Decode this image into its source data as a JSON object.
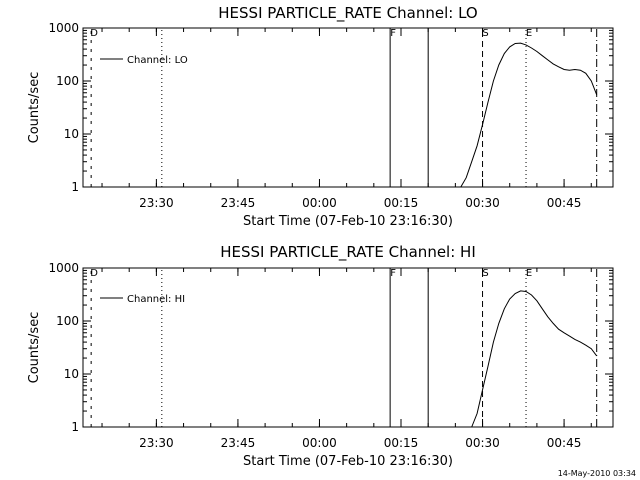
{
  "footer": {
    "date_stamp": "14-May-2010 03:34"
  },
  "chart_data": [
    {
      "type": "line",
      "title": "HESSI PARTICLE_RATE Channel: LO",
      "xlabel": "Start Time (07-Feb-10 23:16:30)",
      "ylabel": "Counts/sec",
      "y_scale": "log",
      "ylim": [
        1,
        1000
      ],
      "xlim": [
        "23:16:30",
        "00:54:00"
      ],
      "x_ticks": [
        "23:30",
        "23:45",
        "00:00",
        "00:15",
        "00:30",
        "00:45"
      ],
      "y_ticks": [
        "1",
        "10",
        "100",
        "1000"
      ],
      "grid": false,
      "legend": {
        "placement": "top-left",
        "entries": [
          "Channel: LO"
        ]
      },
      "series": [
        {
          "name": "Channel: LO",
          "x": [
            "00:26",
            "00:27",
            "00:28",
            "00:29",
            "00:30",
            "00:31",
            "00:32",
            "00:33",
            "00:34",
            "00:35",
            "00:36",
            "00:37",
            "00:38",
            "00:39",
            "00:40",
            "00:41",
            "00:42",
            "00:43",
            "00:44",
            "00:45",
            "00:46",
            "00:47",
            "00:48",
            "00:49",
            "00:50",
            "00:51"
          ],
          "y": [
            1,
            1.5,
            3,
            6,
            15,
            40,
            100,
            200,
            330,
            440,
            510,
            520,
            480,
            420,
            360,
            300,
            250,
            210,
            185,
            165,
            160,
            165,
            160,
            140,
            100,
            55
          ]
        }
      ],
      "annotations": [
        {
          "time": "23:18",
          "style": "solid-short",
          "label": "D"
        },
        {
          "time": "23:31",
          "style": "dotted",
          "label": ""
        },
        {
          "time": "00:13",
          "style": "solid",
          "label": "F"
        },
        {
          "time": "00:20",
          "style": "solid",
          "label": ""
        },
        {
          "time": "00:30",
          "style": "dashed",
          "label": "S"
        },
        {
          "time": "00:38",
          "style": "dotted",
          "label": "E"
        },
        {
          "time": "00:51",
          "style": "dash-dot",
          "label": ""
        }
      ]
    },
    {
      "type": "line",
      "title": "HESSI PARTICLE_RATE Channel: HI",
      "xlabel": "Start Time (07-Feb-10 23:16:30)",
      "ylabel": "Counts/sec",
      "y_scale": "log",
      "ylim": [
        1,
        1000
      ],
      "xlim": [
        "23:16:30",
        "00:54:00"
      ],
      "x_ticks": [
        "23:30",
        "23:45",
        "00:00",
        "00:15",
        "00:30",
        "00:45"
      ],
      "y_ticks": [
        "1",
        "10",
        "100",
        "1000"
      ],
      "grid": false,
      "legend": {
        "placement": "top-left",
        "entries": [
          "Channel: HI"
        ]
      },
      "series": [
        {
          "name": "Channel: HI",
          "x": [
            "00:28",
            "00:29",
            "00:30",
            "00:31",
            "00:32",
            "00:33",
            "00:34",
            "00:35",
            "00:36",
            "00:37",
            "00:38",
            "00:39",
            "00:40",
            "00:41",
            "00:42",
            "00:43",
            "00:44",
            "00:45",
            "00:46",
            "00:47",
            "00:48",
            "00:49",
            "00:50",
            "00:51"
          ],
          "y": [
            1,
            1.8,
            5,
            14,
            40,
            90,
            170,
            260,
            330,
            370,
            360,
            310,
            240,
            170,
            120,
            90,
            70,
            60,
            52,
            45,
            40,
            35,
            30,
            22
          ]
        }
      ],
      "annotations": [
        {
          "time": "23:18",
          "style": "solid-short",
          "label": "D"
        },
        {
          "time": "23:31",
          "style": "dotted",
          "label": ""
        },
        {
          "time": "00:13",
          "style": "solid",
          "label": "F"
        },
        {
          "time": "00:20",
          "style": "solid",
          "label": ""
        },
        {
          "time": "00:30",
          "style": "dashed",
          "label": "S"
        },
        {
          "time": "00:38",
          "style": "dotted",
          "label": "E"
        },
        {
          "time": "00:51",
          "style": "dash-dot",
          "label": ""
        }
      ]
    }
  ]
}
